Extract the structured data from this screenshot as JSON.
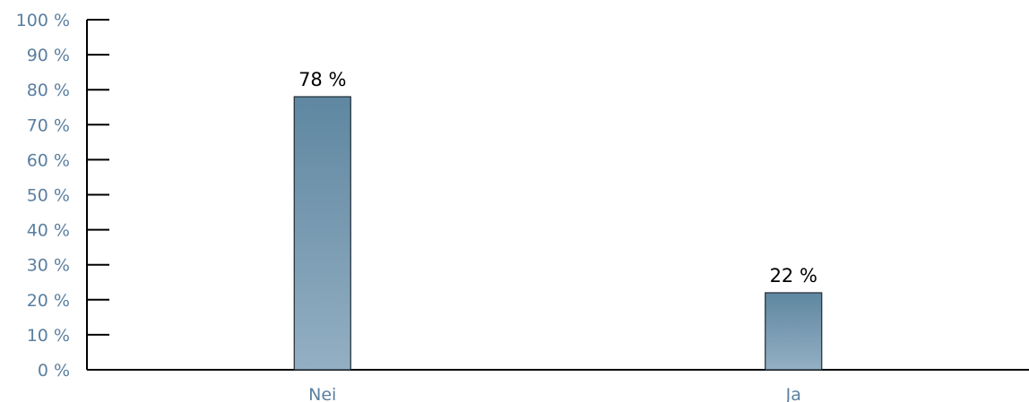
{
  "chart_data": {
    "type": "bar",
    "title": "",
    "xlabel": "",
    "ylabel": "",
    "categories": [
      "Nei",
      "Ja"
    ],
    "values": [
      78,
      22
    ],
    "value_labels": [
      "78 %",
      "22 %"
    ],
    "ylim": [
      0,
      100
    ],
    "y_ticks": [
      0,
      10,
      20,
      30,
      40,
      50,
      60,
      70,
      80,
      90,
      100
    ],
    "y_tick_labels": [
      "0 %",
      "10 %",
      "20 %",
      "30 %",
      "40 %",
      "50 %",
      "60 %",
      "70 %",
      "80 %",
      "90 %",
      "100 %"
    ],
    "grid": false,
    "legend": "none",
    "colors": {
      "bar_top": "#5f87a1",
      "bar_bottom": "#93afc3",
      "bar_border": "#1f2a33",
      "axis": "#000000",
      "tick_text": "#5b7fa0",
      "value_text": "#000000"
    }
  }
}
